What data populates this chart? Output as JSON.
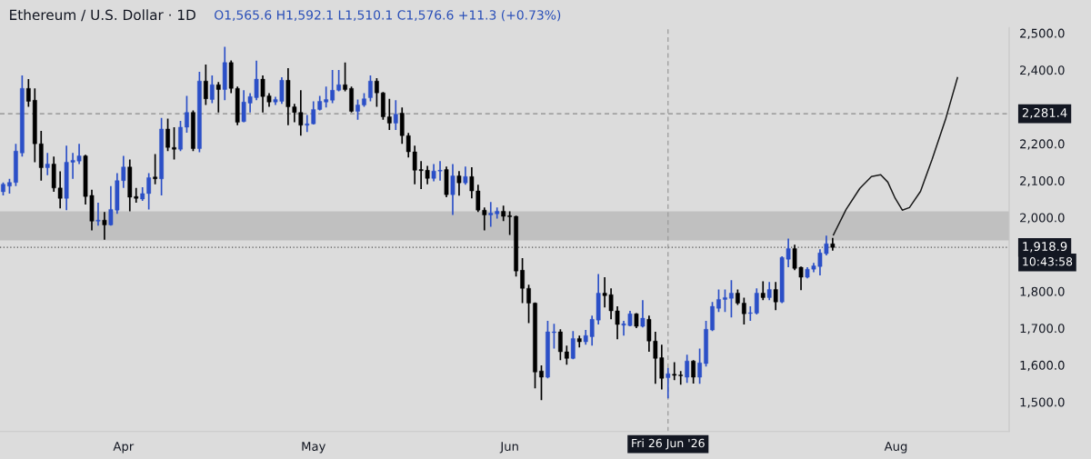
{
  "chart_data": {
    "type": "candlestick",
    "title": "Ethereum / U.S. Dollar · 1D",
    "subtitle": "O1,565.6 H1,592.1 L1,510.1 C1,576.6 +11.3 (+0.73%)",
    "annotations": [
      "10:43:58"
    ],
    "xlim": [
      "2026-03-12T12:00",
      "2026-08-18T21:00"
    ],
    "xticks": [
      {
        "value": "2026-04-01",
        "label": "Apr"
      },
      {
        "value": "2026-05-01",
        "label": "May"
      },
      {
        "value": "2026-06-01",
        "label": "Jun"
      },
      {
        "value": "2026-08-01",
        "label": "Aug"
      }
    ],
    "ylim": [
      1420,
      2515
    ],
    "yticks": [
      {
        "value": 1500,
        "label": "1,500.0"
      },
      {
        "value": 1600,
        "label": "1,600.0"
      },
      {
        "value": 1700,
        "label": "1,700.0"
      },
      {
        "value": 1800,
        "label": "1,800.0"
      },
      {
        "value": 2000,
        "label": "2,000.0"
      },
      {
        "value": 2100,
        "label": "2,100.0"
      },
      {
        "value": 2200,
        "label": "2,200.0"
      },
      {
        "value": 2400,
        "label": "2,400.0"
      },
      {
        "value": 2500,
        "label": "2,500.0"
      }
    ],
    "grid": false,
    "bands": [
      {
        "axis": "y",
        "from": 1938,
        "to": 2017,
        "color": "#c0c0c0"
      }
    ],
    "ref_lines": [
      {
        "axis": "y",
        "value": 2281.4,
        "label": "2,281.4",
        "color": "#8a8a8a",
        "line_style": "dashed"
      },
      {
        "axis": "y",
        "value": 1918.9,
        "label": "1,918.9",
        "color": "#555555",
        "line_style": "dotted"
      },
      {
        "axis": "x",
        "value": "2026-06-26",
        "label": "Fri 26 Jun '26",
        "color": "#9a9a9a",
        "line_style": "dashed"
      }
    ],
    "series": [
      {
        "colors": [
          "#2b4fc7",
          "#2b4fc7",
          "#2b4fc7",
          "#2b4fc7",
          "#000000",
          "#000000",
          "#000000",
          "#2b4fc7",
          "#000000",
          "#000000",
          "#2b4fc7",
          "#2b4fc7",
          "#2b4fc7",
          "#000000",
          "#000000",
          "#2b4fc7",
          "#000000",
          "#2b4fc7",
          "#2b4fc7",
          "#2b4fc7",
          "#000000",
          "#000000",
          "#2b4fc7",
          "#2b4fc7",
          "#000000",
          "#2b4fc7",
          "#000000",
          "#000000",
          "#2b4fc7",
          "#2b4fc7",
          "#000000",
          "#2b4fc7",
          "#000000",
          "#2b4fc7",
          "#000000",
          "#2b4fc7",
          "#000000",
          "#000000",
          "#2b4fc7",
          "#2b4fc7",
          "#2b4fc7",
          "#000000",
          "#000000",
          "#2b4fc7",
          "#2b4fc7",
          "#000000",
          "#000000",
          "#000000",
          "#2b4fc7",
          "#2b4fc7",
          "#2b4fc7",
          "#2b4fc7",
          "#2b4fc7",
          "#2b4fc7",
          "#000000",
          "#000000",
          "#2b4fc7",
          "#2b4fc7",
          "#2b4fc7",
          "#000000",
          "#000000",
          "#000000",
          "#2b4fc7",
          "#000000",
          "#000000",
          "#000000",
          "#000000",
          "#000000",
          "#2b4fc7",
          "#2b4fc7",
          "#000000",
          "#2b4fc7",
          "#000000",
          "#2b4fc7",
          "#000000",
          "#000000",
          "#000000",
          "#2b4fc7",
          "#2b4fc7",
          "#000000",
          "#000000",
          "#000000",
          "#000000",
          "#000000",
          "#000000",
          "#000000",
          "#2b4fc7",
          "#2b4fc7",
          "#000000",
          "#000000",
          "#2b4fc7",
          "#000000",
          "#2b4fc7",
          "#2b4fc7",
          "#2b4fc7",
          "#000000",
          "#000000",
          "#000000",
          "#2b4fc7",
          "#2b4fc7",
          "#000000",
          "#2b4fc7",
          "#000000",
          "#000000",
          "#000000",
          "#2b4fc7",
          "#000000",
          "#000000",
          "#2b4fc7",
          "#000000",
          "#2b4fc7",
          "#2b4fc7",
          "#2b4fc7",
          "#2b4fc7",
          "#2b4fc7",
          "#2b4fc7",
          "#000000",
          "#000000",
          "#2b4fc7",
          "#2b4fc7",
          "#000000",
          "#2b4fc7",
          "#000000",
          "#2b4fc7",
          "#2b4fc7",
          "#000000",
          "#000000",
          "#2b4fc7",
          "#2b4fc7",
          "#2b4fc7",
          "#2b4fc7",
          "#000000"
        ],
        "x": [
          "2026-03-13",
          "2026-03-14",
          "2026-03-15",
          "2026-03-16",
          "2026-03-17",
          "2026-03-18",
          "2026-03-19",
          "2026-03-20",
          "2026-03-21",
          "2026-03-22",
          "2026-03-23",
          "2026-03-24",
          "2026-03-25",
          "2026-03-26",
          "2026-03-27",
          "2026-03-28",
          "2026-03-29",
          "2026-03-30",
          "2026-03-31",
          "2026-04-01",
          "2026-04-02",
          "2026-04-03",
          "2026-04-04",
          "2026-04-05",
          "2026-04-06",
          "2026-04-07",
          "2026-04-08",
          "2026-04-09",
          "2026-04-10",
          "2026-04-11",
          "2026-04-12",
          "2026-04-13",
          "2026-04-14",
          "2026-04-15",
          "2026-04-16",
          "2026-04-17",
          "2026-04-18",
          "2026-04-19",
          "2026-04-20",
          "2026-04-21",
          "2026-04-22",
          "2026-04-23",
          "2026-04-24",
          "2026-04-25",
          "2026-04-26",
          "2026-04-27",
          "2026-04-28",
          "2026-04-29",
          "2026-04-30",
          "2026-05-01",
          "2026-05-02",
          "2026-05-03",
          "2026-05-04",
          "2026-05-05",
          "2026-05-06",
          "2026-05-07",
          "2026-05-08",
          "2026-05-09",
          "2026-05-10",
          "2026-05-11",
          "2026-05-12",
          "2026-05-13",
          "2026-05-14",
          "2026-05-15",
          "2026-05-16",
          "2026-05-17",
          "2026-05-18",
          "2026-05-19",
          "2026-05-20",
          "2026-05-21",
          "2026-05-22",
          "2026-05-23",
          "2026-05-24",
          "2026-05-25",
          "2026-05-26",
          "2026-05-27",
          "2026-05-28",
          "2026-05-29",
          "2026-05-30",
          "2026-05-31",
          "2026-06-01",
          "2026-06-02",
          "2026-06-03",
          "2026-06-04",
          "2026-06-05",
          "2026-06-06",
          "2026-06-07",
          "2026-06-08",
          "2026-06-09",
          "2026-06-10",
          "2026-06-11",
          "2026-06-12",
          "2026-06-13",
          "2026-06-14",
          "2026-06-15",
          "2026-06-16",
          "2026-06-17",
          "2026-06-18",
          "2026-06-19",
          "2026-06-20",
          "2026-06-21",
          "2026-06-22",
          "2026-06-23",
          "2026-06-24",
          "2026-06-25",
          "2026-06-26",
          "2026-06-27",
          "2026-06-28",
          "2026-06-29",
          "2026-06-30",
          "2026-07-01",
          "2026-07-02",
          "2026-07-03",
          "2026-07-04",
          "2026-07-05",
          "2026-07-06",
          "2026-07-07",
          "2026-07-08",
          "2026-07-09",
          "2026-07-10",
          "2026-07-11",
          "2026-07-12",
          "2026-07-13",
          "2026-07-14",
          "2026-07-15",
          "2026-07-16",
          "2026-07-17",
          "2026-07-18",
          "2026-07-19",
          "2026-07-20",
          "2026-07-21",
          "2026-07-22"
        ],
        "ohlc": [
          [
            2070,
            2095,
            2060,
            2090
          ],
          [
            2085,
            2105,
            2065,
            2095
          ],
          [
            2095,
            2200,
            2085,
            2180
          ],
          [
            2175,
            2385,
            2165,
            2350
          ],
          [
            2350,
            2375,
            2300,
            2315
          ],
          [
            2318,
            2350,
            2150,
            2200
          ],
          [
            2200,
            2235,
            2100,
            2135
          ],
          [
            2135,
            2175,
            2115,
            2145
          ],
          [
            2145,
            2165,
            2070,
            2080
          ],
          [
            2080,
            2125,
            2025,
            2052
          ],
          [
            2052,
            2195,
            2020,
            2150
          ],
          [
            2150,
            2175,
            2105,
            2155
          ],
          [
            2153,
            2200,
            2145,
            2167
          ],
          [
            2167,
            2170,
            2035,
            2057
          ],
          [
            2060,
            2075,
            1965,
            1990
          ],
          [
            1990,
            2040,
            1978,
            1993
          ],
          [
            1993,
            2015,
            1940,
            1980
          ],
          [
            1980,
            2085,
            1978,
            2022
          ],
          [
            2020,
            2120,
            2010,
            2100
          ],
          [
            2100,
            2167,
            2080,
            2137
          ],
          [
            2137,
            2157,
            2017,
            2055
          ],
          [
            2057,
            2080,
            2040,
            2052
          ],
          [
            2050,
            2082,
            2045,
            2065
          ],
          [
            2065,
            2120,
            2022,
            2108
          ],
          [
            2110,
            2172,
            2090,
            2105
          ],
          [
            2105,
            2270,
            2060,
            2240
          ],
          [
            2240,
            2268,
            2180,
            2190
          ],
          [
            2190,
            2245,
            2157,
            2185
          ],
          [
            2185,
            2262,
            2180,
            2245
          ],
          [
            2245,
            2330,
            2230,
            2285
          ],
          [
            2285,
            2290,
            2180,
            2187
          ],
          [
            2187,
            2395,
            2177,
            2370
          ],
          [
            2370,
            2415,
            2305,
            2322
          ],
          [
            2320,
            2385,
            2310,
            2360
          ],
          [
            2360,
            2367,
            2285,
            2347
          ],
          [
            2347,
            2463,
            2318,
            2420
          ],
          [
            2420,
            2426,
            2337,
            2350
          ],
          [
            2350,
            2355,
            2250,
            2258
          ],
          [
            2260,
            2345,
            2258,
            2313
          ],
          [
            2310,
            2337,
            2285,
            2328
          ],
          [
            2325,
            2425,
            2318,
            2375
          ],
          [
            2375,
            2385,
            2285,
            2328
          ],
          [
            2330,
            2337,
            2300,
            2313
          ],
          [
            2313,
            2327,
            2305,
            2320
          ],
          [
            2315,
            2380,
            2308,
            2372
          ],
          [
            2372,
            2405,
            2250,
            2300
          ],
          [
            2300,
            2308,
            2258,
            2285
          ],
          [
            2285,
            2345,
            2222,
            2250
          ],
          [
            2250,
            2278,
            2232,
            2254
          ],
          [
            2254,
            2315,
            2252,
            2293
          ],
          [
            2293,
            2330,
            2290,
            2315
          ],
          [
            2313,
            2355,
            2298,
            2320
          ],
          [
            2318,
            2400,
            2310,
            2345
          ],
          [
            2345,
            2400,
            2342,
            2360
          ],
          [
            2360,
            2420,
            2342,
            2347
          ],
          [
            2350,
            2355,
            2285,
            2288
          ],
          [
            2288,
            2320,
            2265,
            2305
          ],
          [
            2305,
            2337,
            2300,
            2322
          ],
          [
            2325,
            2385,
            2315,
            2370
          ],
          [
            2370,
            2378,
            2300,
            2338
          ],
          [
            2338,
            2340,
            2265,
            2273
          ],
          [
            2273,
            2322,
            2237,
            2256
          ],
          [
            2256,
            2318,
            2237,
            2280
          ],
          [
            2283,
            2298,
            2200,
            2222
          ],
          [
            2222,
            2229,
            2163,
            2178
          ],
          [
            2178,
            2195,
            2090,
            2128
          ],
          [
            2130,
            2153,
            2077,
            2127
          ],
          [
            2128,
            2140,
            2090,
            2106
          ],
          [
            2106,
            2145,
            2098,
            2126
          ],
          [
            2126,
            2153,
            2100,
            2128
          ],
          [
            2130,
            2138,
            2055,
            2062
          ],
          [
            2062,
            2145,
            2007,
            2113
          ],
          [
            2113,
            2126,
            2059,
            2094
          ],
          [
            2094,
            2138,
            2089,
            2111
          ],
          [
            2111,
            2136,
            2052,
            2072
          ],
          [
            2072,
            2089,
            2015,
            2020
          ],
          [
            2020,
            2027,
            1965,
            2007
          ],
          [
            2007,
            2042,
            1975,
            2012
          ],
          [
            2010,
            2027,
            1997,
            2017
          ],
          [
            2017,
            2032,
            1990,
            2003
          ],
          [
            2005,
            2017,
            1953,
            2002
          ],
          [
            2003,
            2005,
            1840,
            1855
          ],
          [
            1857,
            1890,
            1768,
            1808
          ],
          [
            1808,
            1818,
            1714,
            1768
          ],
          [
            1768,
            1770,
            1537,
            1581
          ],
          [
            1584,
            1599,
            1505,
            1567
          ],
          [
            1567,
            1720,
            1564,
            1690
          ],
          [
            1688,
            1712,
            1645,
            1690
          ],
          [
            1690,
            1697,
            1613,
            1636
          ],
          [
            1636,
            1653,
            1601,
            1618
          ],
          [
            1618,
            1692,
            1616,
            1672
          ],
          [
            1672,
            1680,
            1648,
            1663
          ],
          [
            1663,
            1695,
            1655,
            1680
          ],
          [
            1677,
            1734,
            1653,
            1724
          ],
          [
            1722,
            1847,
            1710,
            1795
          ],
          [
            1795,
            1838,
            1756,
            1788
          ],
          [
            1791,
            1808,
            1724,
            1747
          ],
          [
            1747,
            1759,
            1670,
            1710
          ],
          [
            1708,
            1720,
            1680,
            1712
          ],
          [
            1707,
            1747,
            1705,
            1739
          ],
          [
            1739,
            1741,
            1700,
            1705
          ],
          [
            1705,
            1776,
            1702,
            1727
          ],
          [
            1724,
            1734,
            1636,
            1665
          ],
          [
            1665,
            1690,
            1549,
            1618
          ],
          [
            1620,
            1655,
            1534,
            1564
          ],
          [
            1565.6,
            1592.1,
            1510.1,
            1576.6
          ],
          [
            1575,
            1608,
            1559,
            1572
          ],
          [
            1573,
            1584,
            1547,
            1571
          ],
          [
            1567,
            1628,
            1552,
            1611
          ],
          [
            1611,
            1613,
            1550,
            1567
          ],
          [
            1567,
            1645,
            1549,
            1606
          ],
          [
            1604,
            1720,
            1596,
            1697
          ],
          [
            1695,
            1771,
            1692,
            1759
          ],
          [
            1754,
            1805,
            1744,
            1778
          ],
          [
            1778,
            1805,
            1744,
            1783
          ],
          [
            1781,
            1830,
            1729,
            1795
          ],
          [
            1795,
            1805,
            1763,
            1768
          ],
          [
            1768,
            1783,
            1710,
            1739
          ],
          [
            1740,
            1759,
            1720,
            1742
          ],
          [
            1741,
            1808,
            1737,
            1795
          ],
          [
            1795,
            1827,
            1776,
            1783
          ],
          [
            1783,
            1825,
            1776,
            1805
          ],
          [
            1805,
            1825,
            1749,
            1771
          ],
          [
            1771,
            1895,
            1768,
            1892
          ],
          [
            1887,
            1943,
            1865,
            1916
          ],
          [
            1916,
            1926,
            1857,
            1862
          ],
          [
            1865,
            1867,
            1803,
            1838
          ],
          [
            1838,
            1865,
            1835,
            1860
          ],
          [
            1860,
            1877,
            1852,
            1869
          ],
          [
            1867,
            1914,
            1843,
            1904
          ],
          [
            1902,
            1951,
            1897,
            1929
          ],
          [
            1929,
            1945,
            1910,
            1918.9
          ]
        ]
      },
      {
        "type": "line",
        "color": "#1a1a1a",
        "x": [
          "2026-07-22T03:00",
          "2026-07-24T03:00",
          "2026-07-26T07:00",
          "2026-07-28T03:00",
          "2026-07-29T14:00",
          "2026-07-30T17:00",
          "2026-07-31T21:00",
          "2026-08-02T00:00",
          "2026-08-03T03:00",
          "2026-08-04T21:00",
          "2026-08-06T17:00",
          "2026-08-08T21:00",
          "2026-08-10T17:00"
        ],
        "values": [
          1953,
          2022,
          2079,
          2111,
          2116,
          2096,
          2052,
          2020,
          2027,
          2071,
          2158,
          2269,
          2379
        ]
      }
    ]
  }
}
